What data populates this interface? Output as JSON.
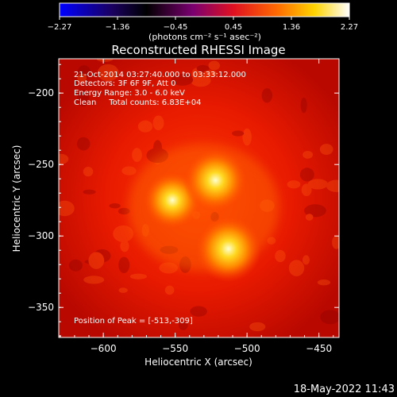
{
  "colorbar": {
    "ticks": [
      "-2.27",
      "-1.36",
      "-0.45",
      "0.45",
      "1.36",
      "2.27"
    ],
    "unit_label": "(photons cm⁻² s⁻¹ asec⁻²)",
    "colormap": "blue-black-red-yellow-white",
    "stops": [
      {
        "offset": 0,
        "color": "#0000ff"
      },
      {
        "offset": 0.18,
        "color": "#1a0060"
      },
      {
        "offset": 0.3,
        "color": "#000000"
      },
      {
        "offset": 0.46,
        "color": "#7a0070"
      },
      {
        "offset": 0.6,
        "color": "#e01020"
      },
      {
        "offset": 0.75,
        "color": "#ff6a00"
      },
      {
        "offset": 0.88,
        "color": "#ffd400"
      },
      {
        "offset": 1,
        "color": "#ffffff"
      }
    ]
  },
  "plot": {
    "title": "Reconstructed RHESSI Image",
    "info_lines": [
      "21-Oct-2014 03:27:40.000 to 03:33:12.000",
      "Detectors: 3F 6F 9F, Att 0",
      "Energy Range: 3.0 - 6.0 keV",
      "Clean     Total counts: 6.83E+04"
    ],
    "peak_text": "Position of Peak = [-513,-309]",
    "xlabel": "Heliocentric X (arcsec)",
    "ylabel": "Heliocentric Y (arcsec)",
    "x_ticks": [
      -600,
      -550,
      -500,
      -450
    ],
    "y_ticks": [
      -200,
      -250,
      -300,
      -350
    ],
    "x_tick_labels": [
      "−600",
      "−550",
      "−500",
      "−450"
    ],
    "y_tick_labels": [
      "−200",
      "−250",
      "−300",
      "−350"
    ],
    "xlim": [
      -631,
      -436
    ],
    "ylim": [
      -371,
      -176
    ],
    "sources": [
      {
        "x": -552,
        "y": -275,
        "brightness": 0.85
      },
      {
        "x": -522,
        "y": -261,
        "brightness": 0.95
      },
      {
        "x": -513,
        "y": -309,
        "brightness": 1.0
      }
    ]
  },
  "footer": {
    "timestamp": "18-May-2022 11:43"
  }
}
